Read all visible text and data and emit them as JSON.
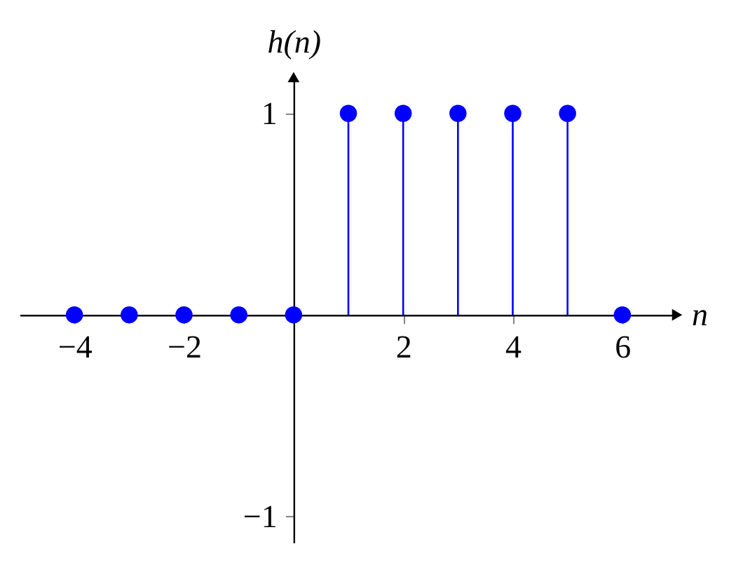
{
  "chart_data": {
    "type": "lollipop",
    "xlabel": "n",
    "ylabel": "h(n)",
    "x": [
      -4,
      -3,
      -2,
      -1,
      0,
      1,
      2,
      3,
      4,
      5,
      6
    ],
    "values": [
      0,
      0,
      0,
      0,
      0,
      1,
      1,
      1,
      1,
      1,
      0
    ],
    "color": "#0000ff",
    "marker": "circle",
    "xlim": [
      -5,
      7
    ],
    "ylim": [
      -1.13,
      1.18
    ],
    "xticks": [
      -4,
      -2,
      2,
      4,
      6
    ],
    "yticks": [
      -1,
      1
    ]
  }
}
